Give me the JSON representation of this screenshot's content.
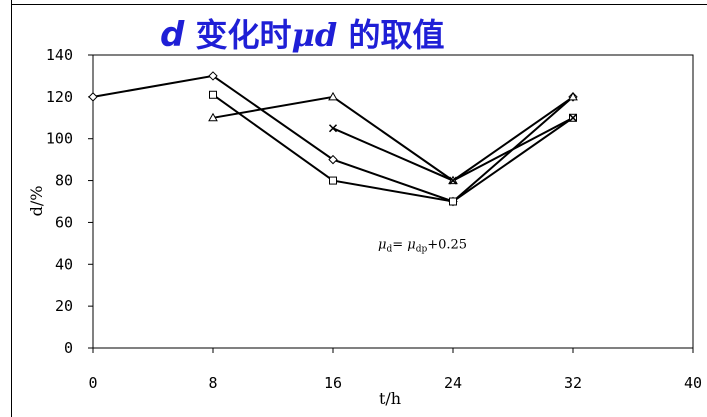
{
  "chart_data": {
    "type": "line",
    "title": {
      "prefix": "d",
      "middle": " 变化时",
      "mu": "μd",
      "suffix": " 的取值"
    },
    "xlabel": "t/h",
    "ylabel": "d/%",
    "xlim": [
      0,
      40
    ],
    "ylim": [
      0,
      140
    ],
    "xticks": [
      0,
      8,
      16,
      24,
      32,
      40
    ],
    "yticks": [
      0,
      20,
      40,
      60,
      80,
      100,
      120,
      140
    ],
    "grid": false,
    "annotation": {
      "mu1": "μ",
      "sub1": "d",
      "eq": "= ",
      "mu2": "μ",
      "sub2": "dp",
      "rest": "+0.25",
      "x": 19,
      "y": 50
    },
    "colors": {
      "line": "#000000",
      "title": "#1f1fd6"
    },
    "series": [
      {
        "marker": "diamond",
        "points": [
          [
            0,
            120
          ],
          [
            8,
            130
          ],
          [
            16,
            90
          ],
          [
            24,
            70
          ],
          [
            32,
            120
          ]
        ]
      },
      {
        "marker": "square",
        "points": [
          [
            8,
            121
          ],
          [
            16,
            80
          ],
          [
            24,
            70
          ],
          [
            32,
            110
          ]
        ]
      },
      {
        "marker": "triangle",
        "points": [
          [
            8,
            110
          ],
          [
            16,
            120
          ],
          [
            24,
            80
          ],
          [
            32,
            120
          ]
        ]
      },
      {
        "marker": "x",
        "points": [
          [
            16,
            105
          ],
          [
            24,
            80
          ],
          [
            32,
            110
          ]
        ]
      }
    ]
  }
}
